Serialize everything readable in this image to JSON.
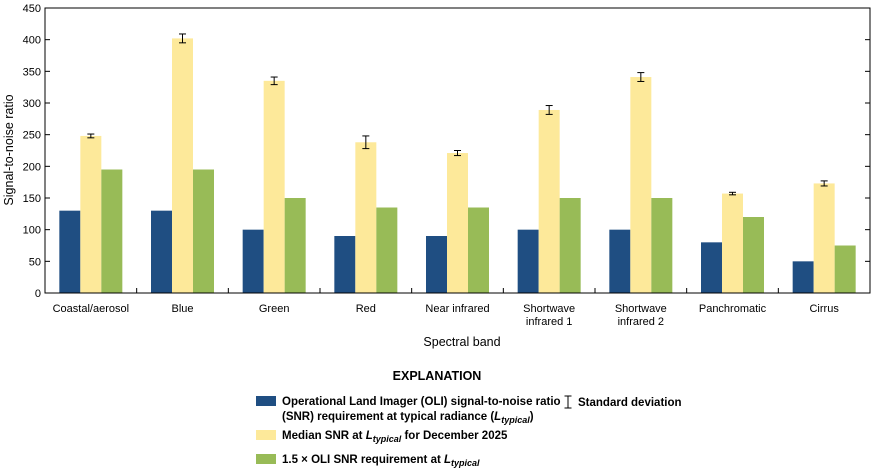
{
  "chart_data": {
    "type": "bar",
    "ylabel": "Signal-to-noise ratio",
    "xlabel": "Spectral band",
    "ylim": [
      0,
      450
    ],
    "yticks": [
      0,
      50,
      100,
      150,
      200,
      250,
      300,
      350,
      400,
      450
    ],
    "grid": false,
    "legend_placement": "bottom",
    "categories": [
      [
        "Coastal/aerosol"
      ],
      [
        "Blue"
      ],
      [
        "Green"
      ],
      [
        "Red"
      ],
      [
        "Near infrared"
      ],
      [
        "Shortwave",
        "infrared 1"
      ],
      [
        "Shortwave",
        "infrared 2"
      ],
      [
        "Panchromatic"
      ],
      [
        "Cirrus"
      ]
    ],
    "series": [
      {
        "key": "oli",
        "color": "#1f4e82",
        "values": [
          130,
          130,
          100,
          90,
          90,
          100,
          100,
          80,
          50
        ]
      },
      {
        "key": "median",
        "color": "#fde99a",
        "values": [
          248,
          402,
          335,
          238,
          221,
          289,
          341,
          157,
          173
        ],
        "std_dev": [
          3,
          7,
          6,
          10,
          4,
          7,
          7,
          2,
          4
        ]
      },
      {
        "key": "oli15",
        "color": "#98bb57",
        "values": [
          195,
          195,
          150,
          135,
          135,
          150,
          150,
          120,
          75
        ]
      }
    ]
  },
  "legend": {
    "title": "EXPLANATION",
    "items": [
      {
        "key": "oli",
        "color": "#1f4e82",
        "lines": [
          [
            {
              "t": "Operational Land Imager (OLI) signal-to-noise ratio"
            }
          ],
          [
            {
              "t": "(SNR) requirement at typical radiance ("
            },
            {
              "t": "L",
              "i": true
            },
            {
              "t": "typical",
              "sub": true,
              "i": true
            },
            {
              "t": ")"
            }
          ]
        ]
      },
      {
        "key": "median",
        "color": "#fde99a",
        "lines": [
          [
            {
              "t": "Median SNR at "
            },
            {
              "t": "L",
              "i": true
            },
            {
              "t": "typical",
              "sub": true,
              "i": true
            },
            {
              "t": " for December 2025"
            }
          ]
        ]
      },
      {
        "key": "oli15",
        "color": "#98bb57",
        "lines": [
          [
            {
              "t": "1.5 × OLI SNR requirement at "
            },
            {
              "t": "L",
              "i": true
            },
            {
              "t": "typical",
              "sub": true,
              "i": true
            }
          ]
        ]
      }
    ],
    "std_label": "Standard deviation"
  }
}
